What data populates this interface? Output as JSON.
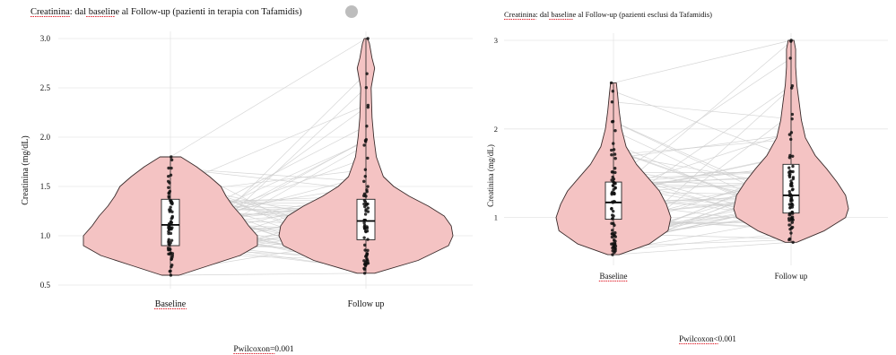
{
  "colors": {
    "violin_fill": "#f4c3c3",
    "violin_stroke": "#3a2b2b",
    "grid": "#e6e6e6",
    "pair_line": "#cfcfcf",
    "point": "#111111",
    "box_fill": "#ffffff",
    "status_dot": "#bdbdbd"
  },
  "chart_data": [
    {
      "type": "violin",
      "title": "Creatinina: dal baseline al Follow-up (pazienti in terapia con Tafamidis)",
      "xlabel": "",
      "ylabel": "Creatinina (mg/dL)",
      "categories": [
        "Baseline",
        "Follow up"
      ],
      "ylim": [
        0.5,
        3.0
      ],
      "yticks": [
        0.5,
        1.0,
        1.5,
        2.0,
        2.5,
        3.0
      ],
      "ytick_labels": [
        "0.5",
        "1.0",
        "1.5",
        "2.0",
        "2.5",
        "3.0"
      ],
      "grid": true,
      "legend": "none",
      "footnote": "Pwilcoxon=0.001",
      "series": [
        {
          "category": "Baseline",
          "min": 0.6,
          "q1": 0.9,
          "median": 1.11,
          "q3": 1.37,
          "max": 1.8,
          "density": [
            [
              0.6,
              0.1
            ],
            [
              0.7,
              0.45
            ],
            [
              0.8,
              0.8
            ],
            [
              0.9,
              1.0
            ],
            [
              1.0,
              1.0
            ],
            [
              1.1,
              0.9
            ],
            [
              1.2,
              0.82
            ],
            [
              1.3,
              0.72
            ],
            [
              1.4,
              0.64
            ],
            [
              1.5,
              0.58
            ],
            [
              1.6,
              0.45
            ],
            [
              1.7,
              0.3
            ],
            [
              1.8,
              0.12
            ]
          ]
        },
        {
          "category": "Follow up",
          "min": 0.62,
          "q1": 0.96,
          "median": 1.15,
          "q3": 1.37,
          "max": 3.0,
          "density": [
            [
              0.62,
              0.1
            ],
            [
              0.75,
              0.6
            ],
            [
              0.9,
              0.95
            ],
            [
              1.0,
              1.0
            ],
            [
              1.1,
              0.98
            ],
            [
              1.2,
              0.9
            ],
            [
              1.3,
              0.72
            ],
            [
              1.4,
              0.5
            ],
            [
              1.5,
              0.32
            ],
            [
              1.6,
              0.2
            ],
            [
              1.8,
              0.12
            ],
            [
              2.0,
              0.09
            ],
            [
              2.2,
              0.07
            ],
            [
              2.5,
              0.06
            ],
            [
              2.7,
              0.1
            ],
            [
              2.8,
              0.07
            ],
            [
              2.95,
              0.04
            ],
            [
              3.0,
              0.02
            ]
          ]
        }
      ]
    },
    {
      "type": "violin",
      "title": "Creatinina: dal baseline al Follow-up (pazienti esclusi da Tafamidis)",
      "xlabel": "",
      "ylabel": "Creatinina (mg/dL)",
      "categories": [
        "Baseline",
        "Follow up"
      ],
      "ylim": [
        0.5,
        3.0
      ],
      "yticks": [
        1,
        2,
        3
      ],
      "ytick_labels": [
        "1",
        "2",
        "3"
      ],
      "grid": true,
      "legend": "none",
      "footnote": "Pwilcoxon<0.001",
      "series": [
        {
          "category": "Baseline",
          "min": 0.58,
          "q1": 0.98,
          "median": 1.17,
          "q3": 1.4,
          "max": 2.52,
          "density": [
            [
              0.58,
              0.1
            ],
            [
              0.7,
              0.62
            ],
            [
              0.85,
              0.95
            ],
            [
              1.0,
              1.0
            ],
            [
              1.15,
              0.92
            ],
            [
              1.3,
              0.8
            ],
            [
              1.45,
              0.6
            ],
            [
              1.6,
              0.4
            ],
            [
              1.8,
              0.22
            ],
            [
              2.0,
              0.14
            ],
            [
              2.2,
              0.1
            ],
            [
              2.4,
              0.07
            ],
            [
              2.52,
              0.05
            ]
          ]
        },
        {
          "category": "Follow up",
          "min": 0.72,
          "q1": 1.05,
          "median": 1.25,
          "q3": 1.6,
          "max": 3.0,
          "density": [
            [
              0.72,
              0.1
            ],
            [
              0.85,
              0.58
            ],
            [
              1.0,
              0.95
            ],
            [
              1.1,
              1.0
            ],
            [
              1.25,
              0.95
            ],
            [
              1.4,
              0.8
            ],
            [
              1.55,
              0.62
            ],
            [
              1.7,
              0.42
            ],
            [
              1.9,
              0.25
            ],
            [
              2.1,
              0.18
            ],
            [
              2.3,
              0.14
            ],
            [
              2.5,
              0.1
            ],
            [
              2.7,
              0.08
            ],
            [
              2.9,
              0.08
            ],
            [
              3.0,
              0.05
            ]
          ]
        }
      ]
    }
  ]
}
